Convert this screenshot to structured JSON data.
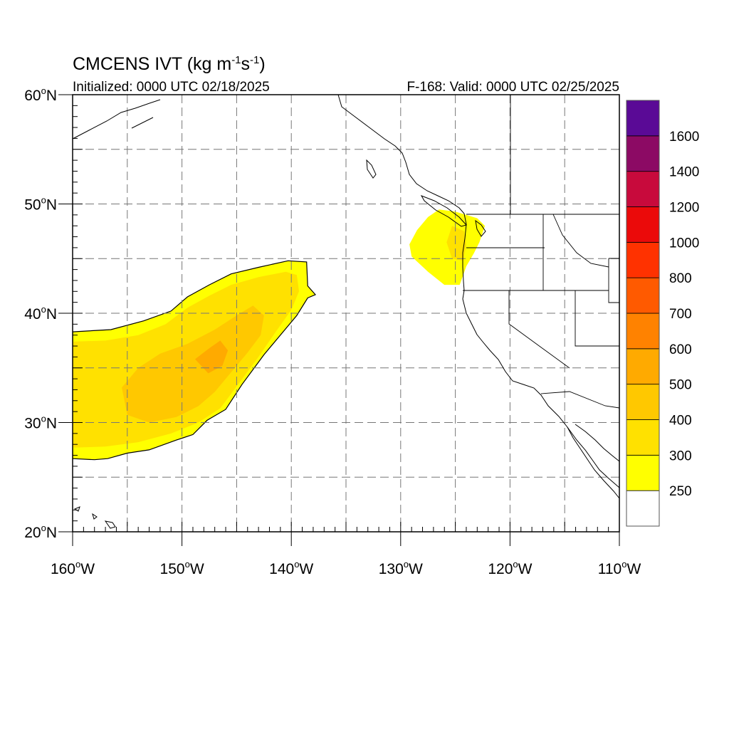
{
  "title": {
    "model": "CMCENS IVT",
    "units_prefix": "(kg m",
    "units_exp1": "-1",
    "units_mid": "s",
    "units_exp2": "-1",
    "units_suffix": ")",
    "initialized": "Initialized: 0000 UTC 02/18/2025",
    "valid": "F-168: Valid: 0000 UTC 02/25/2025"
  },
  "axes": {
    "lon_range": [
      -160,
      -110
    ],
    "lat_range": [
      20,
      60
    ],
    "x_ticks": [
      {
        "value": -160,
        "label": "160",
        "hemi": "W"
      },
      {
        "value": -150,
        "label": "150",
        "hemi": "W"
      },
      {
        "value": -140,
        "label": "140",
        "hemi": "W"
      },
      {
        "value": -130,
        "label": "130",
        "hemi": "W"
      },
      {
        "value": -120,
        "label": "120",
        "hemi": "W"
      },
      {
        "value": -110,
        "label": "110",
        "hemi": "W"
      }
    ],
    "y_ticks": [
      {
        "value": 20,
        "label": "20",
        "hemi": "N"
      },
      {
        "value": 30,
        "label": "30",
        "hemi": "N"
      },
      {
        "value": 40,
        "label": "40",
        "hemi": "N"
      },
      {
        "value": 50,
        "label": "50",
        "hemi": "N"
      },
      {
        "value": 60,
        "label": "60",
        "hemi": "N"
      }
    ],
    "grid_spacing_deg": 5,
    "grid_style": "dashed"
  },
  "colorbar": {
    "levels": [
      {
        "label": "",
        "color": "#ffffff"
      },
      {
        "label": "250",
        "color": "#ffff00"
      },
      {
        "label": "300",
        "color": "#ffe100"
      },
      {
        "label": "400",
        "color": "#ffc800"
      },
      {
        "label": "500",
        "color": "#ffaa00"
      },
      {
        "label": "600",
        "color": "#ff8200"
      },
      {
        "label": "700",
        "color": "#ff5a00"
      },
      {
        "label": "800",
        "color": "#ff3200"
      },
      {
        "label": "1000",
        "color": "#eb0a0a"
      },
      {
        "label": "1200",
        "color": "#c80a3c"
      },
      {
        "label": "1400",
        "color": "#8c0a64"
      },
      {
        "label": "1600",
        "color": "#5a0a96"
      }
    ]
  },
  "ivt_regions": [
    {
      "name": "central-pacific-plume",
      "level": 250,
      "polygon": [
        [
          -160,
          38.3
        ],
        [
          -156.5,
          38.5
        ],
        [
          -153.5,
          39.3
        ],
        [
          -151,
          40.2
        ],
        [
          -149.5,
          41.5
        ],
        [
          -147.5,
          42.6
        ],
        [
          -145.5,
          43.6
        ],
        [
          -143,
          44.2
        ],
        [
          -140.3,
          44.8
        ],
        [
          -138.6,
          44.7
        ],
        [
          -138.5,
          42.5
        ],
        [
          -137.8,
          41.7
        ],
        [
          -138.5,
          41.4
        ],
        [
          -139.5,
          39.8
        ],
        [
          -141,
          38
        ],
        [
          -142.5,
          36.2
        ],
        [
          -144.5,
          33.5
        ],
        [
          -146,
          31.2
        ],
        [
          -147.7,
          30.2
        ],
        [
          -149,
          28.9
        ],
        [
          -150.5,
          28.4
        ],
        [
          -153,
          27.5
        ],
        [
          -155,
          27.2
        ],
        [
          -156.8,
          26.7
        ],
        [
          -158,
          26.6
        ],
        [
          -160,
          26.7
        ]
      ]
    },
    {
      "name": "central-pacific-plume",
      "level": 300,
      "polygon": [
        [
          -160,
          37.4
        ],
        [
          -157,
          37.5
        ],
        [
          -154,
          38
        ],
        [
          -151.5,
          39
        ],
        [
          -149.5,
          40.5
        ],
        [
          -147.5,
          41.6
        ],
        [
          -145.5,
          42.6
        ],
        [
          -143,
          43.3
        ],
        [
          -140.5,
          43.8
        ],
        [
          -139.5,
          43.5
        ],
        [
          -139.3,
          42
        ],
        [
          -140,
          40.3
        ],
        [
          -141.5,
          38.2
        ],
        [
          -143,
          36
        ],
        [
          -145,
          33.3
        ],
        [
          -146.5,
          31.3
        ],
        [
          -148.5,
          30
        ],
        [
          -151,
          29
        ],
        [
          -154,
          28.2
        ],
        [
          -157,
          27.8
        ],
        [
          -160,
          27.7
        ]
      ]
    },
    {
      "name": "central-pacific-plume",
      "level": 400,
      "polygon": [
        [
          -155.5,
          33.2
        ],
        [
          -154,
          35
        ],
        [
          -152,
          36.3
        ],
        [
          -149.5,
          37.2
        ],
        [
          -147,
          38.5
        ],
        [
          -145,
          39.8
        ],
        [
          -143.5,
          40.7
        ],
        [
          -142.5,
          39.8
        ],
        [
          -142.8,
          38
        ],
        [
          -144,
          36.4
        ],
        [
          -145.5,
          34.6
        ],
        [
          -147,
          32.8
        ],
        [
          -148.5,
          31.5
        ],
        [
          -150.5,
          30.5
        ],
        [
          -153,
          30
        ],
        [
          -155,
          30.7
        ]
      ]
    },
    {
      "name": "central-pacific-plume",
      "level": 500,
      "polygon": [
        [
          -148.8,
          35.8
        ],
        [
          -147.5,
          36.8
        ],
        [
          -146.5,
          37.5
        ],
        [
          -145.8,
          36.6
        ],
        [
          -146.3,
          35.2
        ],
        [
          -147.6,
          34.5
        ]
      ]
    },
    {
      "name": "pacific-northwest-blob",
      "level": 250,
      "polygon": [
        [
          -126.5,
          49.5
        ],
        [
          -125,
          49.3
        ],
        [
          -123,
          48.7
        ],
        [
          -122.3,
          48
        ],
        [
          -122.8,
          46.5
        ],
        [
          -123.3,
          45.5
        ],
        [
          -124,
          44.3
        ],
        [
          -124.6,
          42.6
        ],
        [
          -126,
          42.6
        ],
        [
          -127.5,
          43.8
        ],
        [
          -129,
          45.2
        ],
        [
          -129.2,
          46.3
        ],
        [
          -128.5,
          47.6
        ],
        [
          -127.5,
          48.8
        ]
      ]
    },
    {
      "name": "pacific-northwest-blob",
      "level": 300,
      "polygon": [
        [
          -125.3,
          48
        ],
        [
          -124.2,
          47.5
        ],
        [
          -124,
          46.2
        ],
        [
          -124.3,
          44.8
        ],
        [
          -125.3,
          45
        ],
        [
          -125.8,
          46.5
        ]
      ]
    }
  ]
}
